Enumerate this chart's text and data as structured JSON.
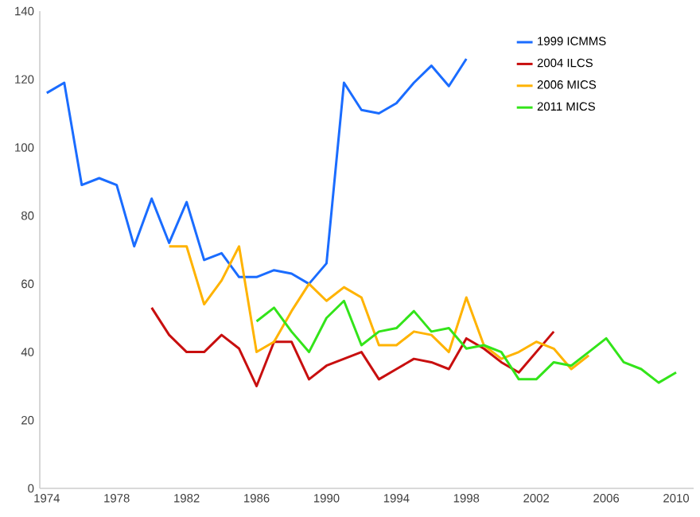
{
  "chart_data": {
    "type": "line",
    "series": [
      {
        "name": "1999 ICMMS",
        "color": "#1a6cff",
        "x": [
          1974,
          1975,
          1976,
          1977,
          1978,
          1979,
          1980,
          1981,
          1982,
          1983,
          1984,
          1985,
          1986,
          1987,
          1988,
          1989,
          1990,
          1991,
          1992,
          1993,
          1994,
          1995,
          1996,
          1997,
          1998
        ],
        "values": [
          116,
          119,
          89,
          91,
          89,
          71,
          85,
          72,
          84,
          67,
          69,
          62,
          62,
          64,
          63,
          60,
          66,
          119,
          111,
          110,
          113,
          119,
          124,
          118,
          126
        ]
      },
      {
        "name": "2004 ILCS",
        "color": "#c80f0f",
        "x": [
          1980,
          1981,
          1982,
          1983,
          1984,
          1985,
          1986,
          1987,
          1988,
          1989,
          1990,
          1991,
          1992,
          1993,
          1994,
          1995,
          1996,
          1997,
          1998,
          1999,
          2000,
          2001,
          2002,
          2003
        ],
        "values": [
          53,
          45,
          40,
          40,
          45,
          41,
          30,
          43,
          43,
          32,
          36,
          38,
          40,
          32,
          35,
          38,
          37,
          35,
          44,
          41,
          37,
          34,
          40,
          46
        ]
      },
      {
        "name": "2006 MICS",
        "color": "#ffb300",
        "x": [
          1981,
          1982,
          1983,
          1984,
          1985,
          1986,
          1987,
          1988,
          1989,
          1990,
          1991,
          1992,
          1993,
          1994,
          1995,
          1996,
          1997,
          1998,
          1999,
          2000,
          2001,
          2002,
          2003,
          2004,
          2005
        ],
        "values": [
          71,
          71,
          54,
          61,
          71,
          40,
          43,
          52,
          60,
          55,
          59,
          56,
          42,
          42,
          46,
          45,
          40,
          56,
          42,
          38,
          40,
          43,
          41,
          35,
          39
        ]
      },
      {
        "name": "2011 MICS",
        "color": "#33e41a",
        "x": [
          1986,
          1987,
          1988,
          1989,
          1990,
          1991,
          1992,
          1993,
          1994,
          1995,
          1996,
          1997,
          1998,
          1999,
          2000,
          2001,
          2002,
          2003,
          2004,
          2005,
          2006,
          2007,
          2008,
          2009,
          2010
        ],
        "values": [
          49,
          53,
          46,
          40,
          50,
          55,
          42,
          46,
          47,
          52,
          46,
          47,
          41,
          42,
          40,
          32,
          32,
          37,
          36,
          40,
          44,
          37,
          35,
          31,
          34
        ]
      }
    ],
    "xlim": [
      1973.6,
      2011
    ],
    "xticks": [
      1974,
      1978,
      1982,
      1986,
      1990,
      1994,
      1998,
      2002,
      2006,
      2010
    ],
    "ylim": [
      0,
      140
    ],
    "yticks": [
      0,
      20,
      40,
      60,
      80,
      100,
      120,
      140
    ],
    "grid": false,
    "legend": "top right",
    "marker": "none",
    "line_style": "solid"
  }
}
